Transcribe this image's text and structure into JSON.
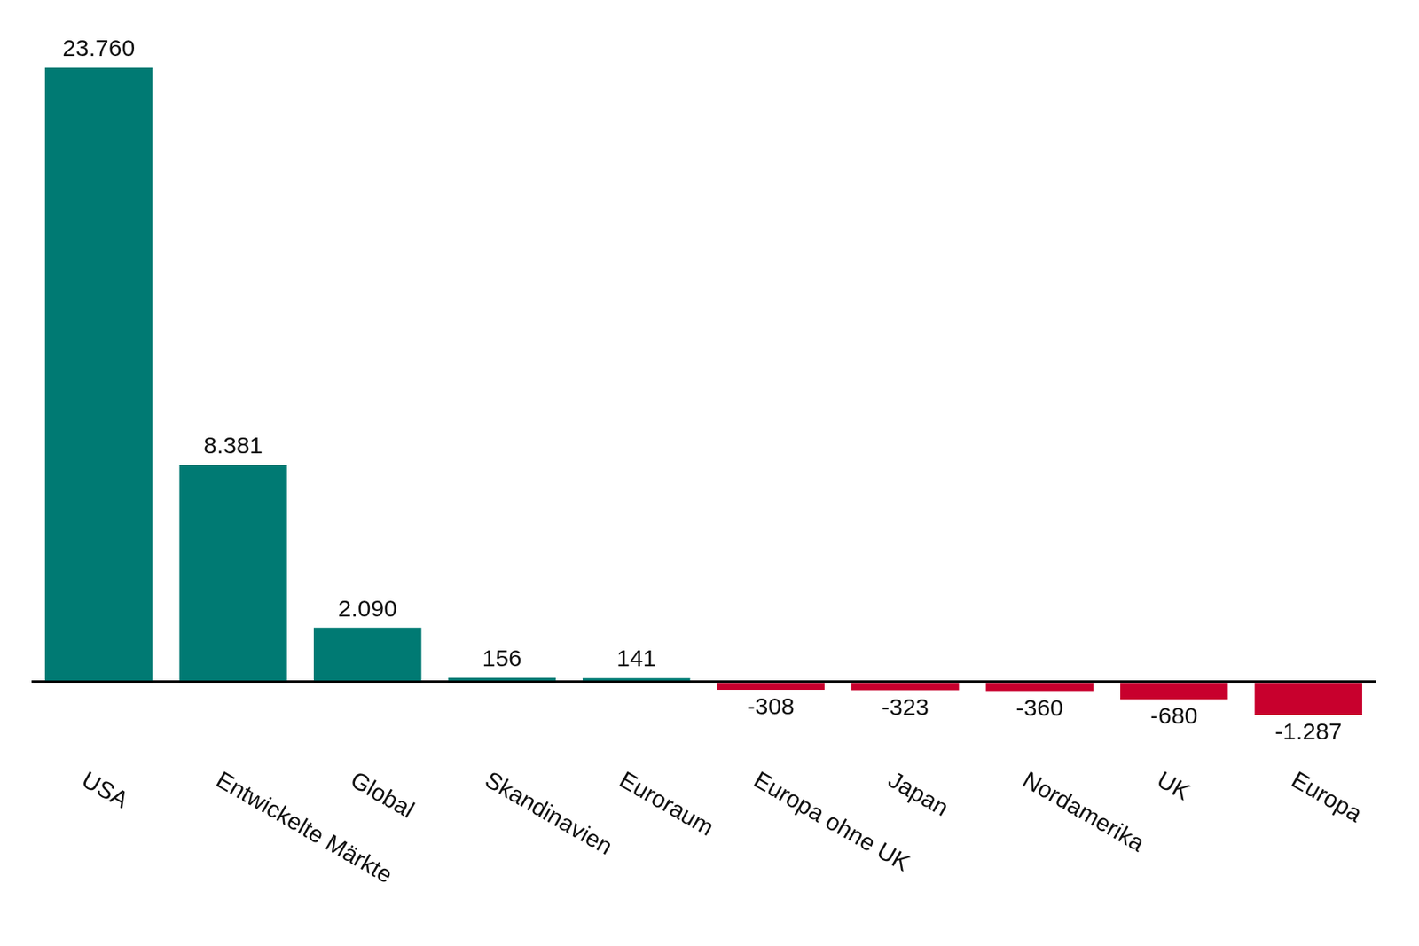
{
  "chart_data": {
    "type": "bar",
    "categories": [
      "USA",
      "Entwickelte Märkte",
      "Global",
      "Skandinavien",
      "Euroraum",
      "Europa ohne UK",
      "Japan",
      "Nordamerika",
      "UK",
      "Europa"
    ],
    "values": [
      23760,
      8381,
      2090,
      156,
      141,
      -308,
      -323,
      -360,
      -680,
      -1287
    ],
    "value_labels": [
      "23.760",
      "8.381",
      "2.090",
      "156",
      "141",
      "-308",
      "-323",
      "-360",
      "-680",
      "-1.287"
    ],
    "colors": [
      "#007a73",
      "#007a73",
      "#007a73",
      "#007a73",
      "#007a73",
      "#c8002d",
      "#c8002d",
      "#c8002d",
      "#c8002d",
      "#c8002d"
    ],
    "ylim": [
      -1287,
      23760
    ],
    "yticks": [
      0
    ],
    "data_labels": true,
    "tick_labels": "x"
  }
}
